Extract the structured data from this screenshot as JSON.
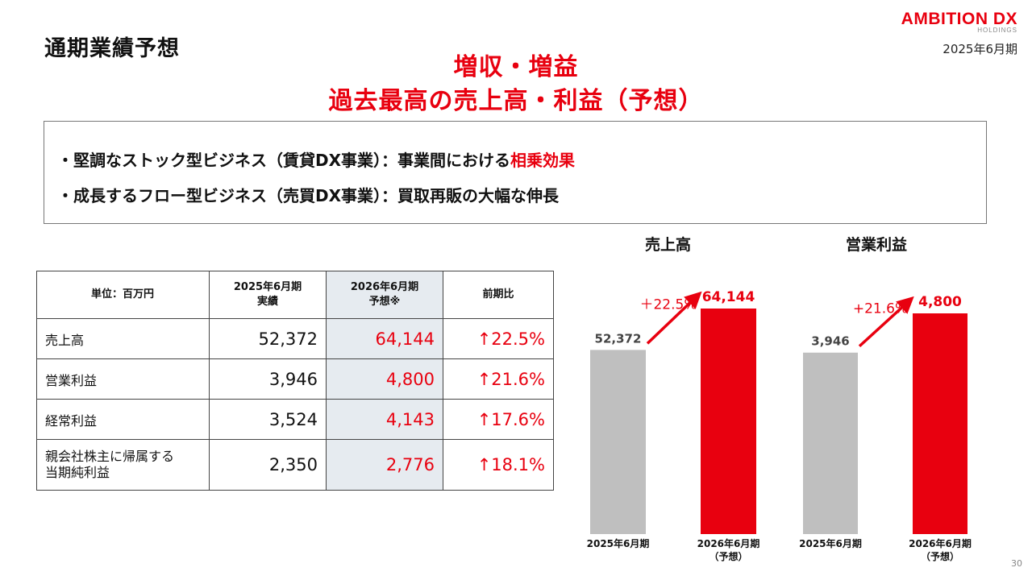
{
  "header": {
    "title": "通期業績予想",
    "logo_text": "AMBITION DX",
    "logo_sub": "HOLDINGS",
    "period": "2025年6月期"
  },
  "headline": {
    "line1": "増収・増益",
    "line2": "過去最高の売上高・利益（予想）"
  },
  "notes": {
    "line1_prefix": "・堅調なストック型ビジネス（賃貸DX事業）：事業間における",
    "line1_highlight": "相乗効果",
    "line2": "・成長するフロー型ビジネス（売買DX事業）：買取再販の大幅な伸長"
  },
  "table": {
    "headers": {
      "unit": "単位：百万円",
      "col1_line1": "2025年6月期",
      "col1_line2": "実績",
      "col2_line1": "2026年6月期",
      "col2_line2": "予想※",
      "col3": "前期比"
    },
    "rows": [
      {
        "item": "売上高",
        "actual": "52,372",
        "forecast": "64,144",
        "change": "↑22.5%"
      },
      {
        "item": "営業利益",
        "actual": "3,946",
        "forecast": "4,800",
        "change": "↑21.6%"
      },
      {
        "item": "経常利益",
        "actual": "3,524",
        "forecast": "4,143",
        "change": "↑17.6%"
      },
      {
        "item_line1": "親会社株主に帰属する",
        "item_line2": "当期純利益",
        "actual": "2,350",
        "forecast": "2,776",
        "change": "↑18.1%"
      }
    ]
  },
  "chart_data": [
    {
      "type": "bar",
      "title": "売上高",
      "categories": [
        "2025年6月期",
        "2026年6月期\n（予想）"
      ],
      "values": [
        52372,
        64144
      ],
      "value_labels": [
        "52,372",
        "64,144"
      ],
      "growth_label": "＋22.5%",
      "colors": [
        "#bfbfbf",
        "#e8000f"
      ]
    },
    {
      "type": "bar",
      "title": "営業利益",
      "categories": [
        "2025年6月期",
        "2026年6月期\n（予想）"
      ],
      "values": [
        3946,
        4800
      ],
      "value_labels": [
        "3,946",
        "4,800"
      ],
      "growth_label": "+21.6%",
      "colors": [
        "#bfbfbf",
        "#e8000f"
      ]
    }
  ],
  "page_number": "30"
}
